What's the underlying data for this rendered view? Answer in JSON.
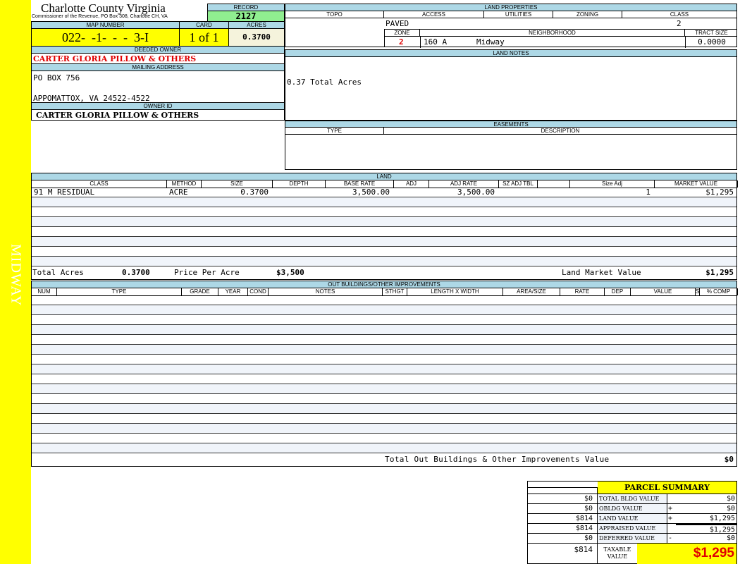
{
  "side_label": "MIDWAY",
  "header": {
    "title": "Charlotte County Virginia",
    "subtitle": "Commissioner of the Revenue, PO Box 308, Charlotte CH, VA",
    "record_label": "RECORD",
    "record": "2127",
    "map_label": "MAP NUMBER",
    "map_number": "022-  -1-  -  -  3-I",
    "card_label": "CARD",
    "card": "1 of 1",
    "acres_label": "ACRES",
    "acres": "0.3700"
  },
  "owner": {
    "deeded_label": "DEEDED OWNER",
    "deeded": "CARTER GLORIA PILLOW & OTHERS",
    "mailing_label": "MAILING ADDRESS",
    "address1": "PO BOX 756",
    "address2": "APPOMATTOX, VA 24522-4522",
    "owner_id_label": "OWNER ID",
    "owner_id": "CARTER GLORIA PILLOW & OTHERS"
  },
  "land_properties": {
    "title": "LAND PROPERTIES",
    "topo": "TOPO",
    "access": "ACCESS",
    "utilities": "UTILITIES",
    "zoning": "ZONING",
    "class": "CLASS",
    "access_value": "PAVED",
    "class_value": "2",
    "zone_label": "ZONE",
    "neighborhood_label": "NEIGHBORHOOD",
    "tract_label": "TRACT SIZE",
    "zone": "2",
    "neighborhood_code": "160 A",
    "neighborhood": "Midway",
    "tract_size": "0.0000"
  },
  "land_notes": {
    "title": "LAND NOTES",
    "text": "0.37 Total Acres"
  },
  "easements": {
    "title": "EASEMENTS",
    "type": "TYPE",
    "description": "DESCRIPTION"
  },
  "land": {
    "title": "LAND",
    "columns": [
      "CLASS",
      "METHOD",
      "SIZE",
      "DEPTH",
      "BASE RATE",
      "ADJ",
      "ADJ RATE",
      "SZ ADJ TBL",
      "",
      "Size Adj",
      "MARKET VALUE"
    ],
    "rows": [
      [
        "91 M RESIDUAL",
        "ACRE",
        "0.3700",
        "",
        "3,500.00",
        "",
        "3,500.00",
        "",
        "",
        "1",
        "$1,295"
      ]
    ],
    "total_acres_label": "Total Acres",
    "total_acres": "0.3700",
    "ppa_label": "Price Per Acre",
    "ppa": "$3,500",
    "lmv_label": "Land Market Value",
    "lmv": "$1,295"
  },
  "outbuildings": {
    "title": "OUT BUILDINGS/OTHER IMPROVEMENTS",
    "columns": [
      "NUM",
      "TYPE",
      "GRADE",
      "YEAR",
      "COND",
      "NOTES",
      "STHGT",
      "LENGTH X WIDTH",
      "AREA/SIZE",
      "RATE",
      "DEP",
      "VALUE",
      "S",
      "% COMP"
    ],
    "total_label": "Total Out Buildings & Other Improvements Value",
    "total": "$0"
  },
  "summary": {
    "title": "PARCEL SUMMARY",
    "rows": [
      {
        "left": "$0",
        "label": "TOTAL BLDG VALUE",
        "op": "",
        "value": "$0"
      },
      {
        "left": "$0",
        "label": "OBLDG VALUE",
        "op": "+",
        "value": "$0"
      },
      {
        "left": "$814",
        "label": "LAND VALUE",
        "op": "+",
        "value": "$1,295"
      },
      {
        "left": "$814",
        "label": "APPRAISED VALUE",
        "op": "",
        "value": "$1,295"
      },
      {
        "left": "$0",
        "label": "DEFERRED VALUE",
        "op": "-",
        "value": "$0"
      }
    ],
    "taxable_left": "$814",
    "taxable_label": "TAXABLE VALUE",
    "taxable": "$1,295"
  },
  "colors": {
    "label_bg": "#add8e6",
    "yellow": "#ffff00",
    "record_bg": "#90ee90",
    "red": "#e00000"
  }
}
